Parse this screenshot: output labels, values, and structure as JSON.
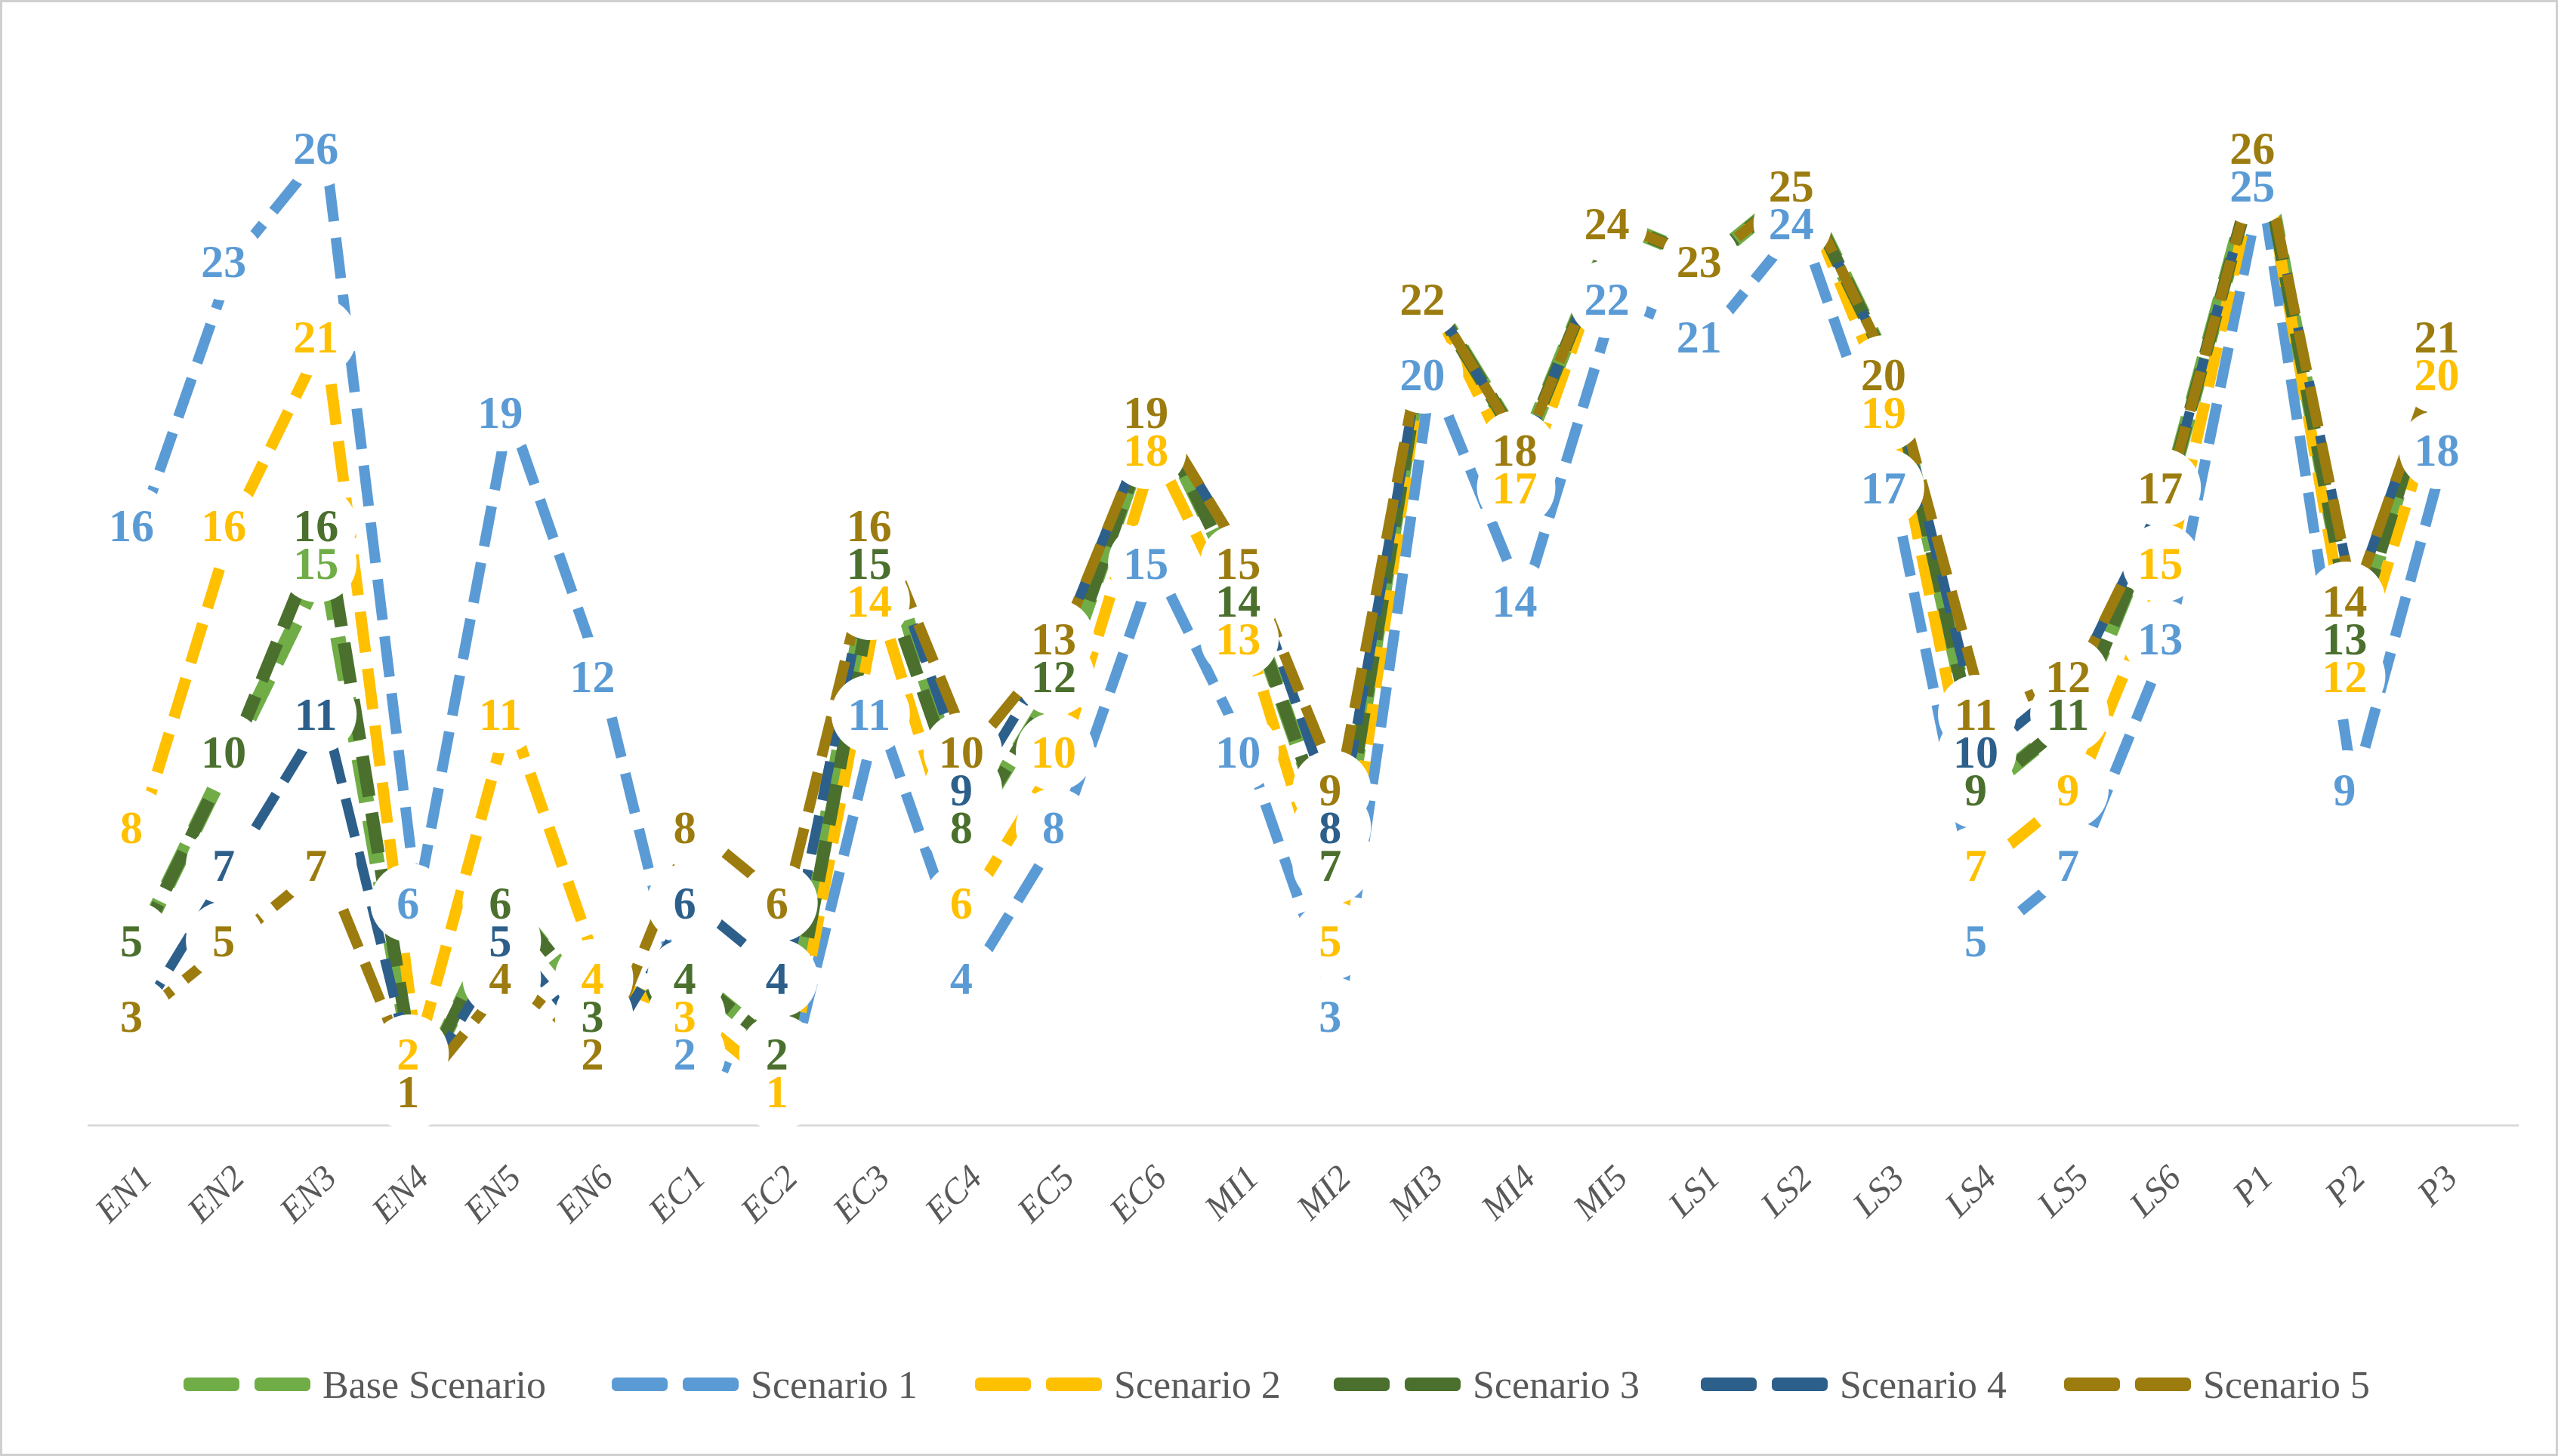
{
  "chart_data": {
    "type": "line",
    "title": "",
    "xlabel": "",
    "ylabel": "",
    "categories": [
      "EN1",
      "EN2",
      "EN3",
      "EN4",
      "EN5",
      "EN6",
      "EC1",
      "EC2",
      "EC3",
      "EC4",
      "EC5",
      "EC6",
      "MI1",
      "MI2",
      "MI3",
      "MI4",
      "MI5",
      "LS1",
      "LS2",
      "LS3",
      "LS4",
      "LS5",
      "LS6",
      "P1",
      "P2",
      "P3"
    ],
    "series": [
      {
        "name": "Base Scenario",
        "color": "#70AD47",
        "values": [
          5,
          10,
          15,
          1,
          6,
          3,
          4,
          2,
          16,
          8,
          12,
          19,
          14,
          7,
          22,
          18,
          24,
          23,
          25,
          20,
          9,
          11,
          17,
          26,
          13,
          21
        ]
      },
      {
        "name": "Scenario 1",
        "color": "#5B9BD5",
        "values": [
          16,
          23,
          26,
          6,
          19,
          12,
          2,
          1,
          11,
          4,
          8,
          15,
          10,
          3,
          20,
          14,
          22,
          21,
          24,
          17,
          5,
          7,
          13,
          25,
          9,
          18
        ]
      },
      {
        "name": "Scenario 2",
        "color": "#FFC000",
        "values": [
          8,
          16,
          21,
          2,
          11,
          4,
          3,
          1,
          14,
          6,
          10,
          18,
          13,
          5,
          22,
          17,
          24,
          23,
          25,
          19,
          7,
          9,
          15,
          26,
          12,
          20
        ]
      },
      {
        "name": "Scenario 3",
        "color": "#4B702E",
        "values": [
          5,
          10,
          16,
          1,
          6,
          3,
          4,
          2,
          15,
          8,
          12,
          19,
          14,
          7,
          22,
          18,
          24,
          23,
          25,
          20,
          9,
          11,
          17,
          26,
          13,
          21
        ]
      },
      {
        "name": "Scenario 4",
        "color": "#2D5F8B",
        "values": [
          3,
          7,
          11,
          1,
          5,
          2,
          6,
          4,
          16,
          9,
          13,
          19,
          15,
          8,
          22,
          18,
          24,
          23,
          25,
          20,
          10,
          12,
          17,
          26,
          14,
          21
        ]
      },
      {
        "name": "Scenario 5",
        "color": "#9C7C0F",
        "values": [
          3,
          5,
          7,
          1,
          4,
          2,
          8,
          6,
          16,
          10,
          13,
          19,
          15,
          9,
          22,
          18,
          24,
          23,
          25,
          20,
          11,
          12,
          17,
          26,
          14,
          21
        ]
      }
    ],
    "value_range": [
      1,
      26
    ],
    "line_style": "dashed",
    "marker": "diamond",
    "data_labels": true,
    "grid": false,
    "y_axis_visible": false,
    "x_tick_rotation": -45,
    "legend_position": "bottom"
  },
  "axis": {
    "line_color": "#D9D9D9",
    "tick_label_color": "#595959"
  },
  "legend": {
    "text_color": "#595959"
  }
}
